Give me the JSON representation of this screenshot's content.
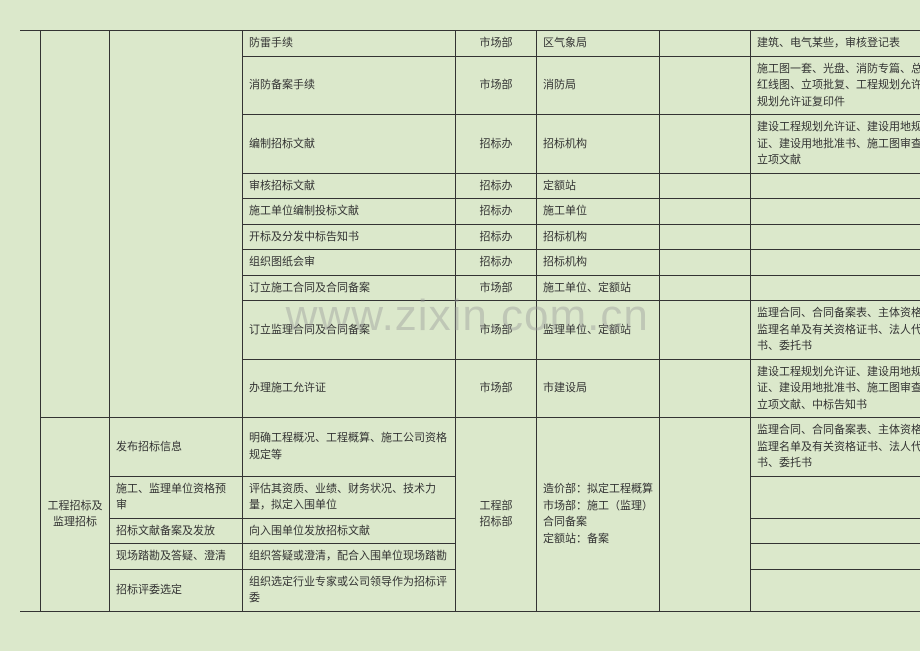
{
  "watermark": "www.zixin.com.cn",
  "rows": [
    {
      "c": "防雷手续",
      "d": "市场部",
      "e": "区气象局",
      "f": "",
      "g": "建筑、电气某些，审核登记表"
    },
    {
      "c": "消防备案手续",
      "d": "市场部",
      "e": "消防局",
      "f": "",
      "g": "施工图一套、光盘、消防专篇、总平面图、红线图、立项批复、工程规划允许证、用地规划允许证复印件"
    },
    {
      "c": "编制招标文献",
      "d": "招标办",
      "e": "招标机构",
      "f": "",
      "g": "建设工程规划允许证、建设用地规划允许证、建设用地批准书、施工图审查合格书、立项文献"
    },
    {
      "c": "审核招标文献",
      "d": "招标办",
      "e": "定额站",
      "f": "",
      "g": ""
    },
    {
      "c": "施工单位编制投标文献",
      "d": "招标办",
      "e": "施工单位",
      "f": "",
      "g": ""
    },
    {
      "c": "开标及分发中标告知书",
      "d": "招标办",
      "e": "招标机构",
      "f": "",
      "g": ""
    },
    {
      "c": "组织图纸会审",
      "d": "招标办",
      "e": "招标机构",
      "f": "",
      "g": ""
    },
    {
      "c": "订立施工合同及合同备案",
      "d": "市场部",
      "e": "施工单位、定额站",
      "f": "",
      "g": ""
    },
    {
      "c": "订立监理合同及合同备案",
      "d": "市场部",
      "e": "监理单位、定额站",
      "f": "",
      "g": "监理合同、合同备案表、主体资格确认书、监理名单及有关资格证书、法人代表资格证书、委托书"
    },
    {
      "c": "办理施工允许证",
      "d": "市场部",
      "e": "市建设局",
      "f": "",
      "g": "建设工程规划允许证、建设用地规划允许证、建设用地批准书、施工图审查合格书、立项文献、中标告知书"
    }
  ],
  "section2": {
    "a": "工程招标及监理招标",
    "d": "工程部\n招标部",
    "e": "造价部：拟定工程概算\n市场部：施工（监理）合同备案\n定额站：备案",
    "rows": [
      {
        "b": "发布招标信息",
        "c": "明确工程概况、工程概算、施工公司资格规定等",
        "g": "监理合同、合同备案表、主体资格确认书、监理名单及有关资格证书、法人代表资格证书、委托书"
      },
      {
        "b": "施工、监理单位资格预审",
        "c": "评估其资质、业绩、财务状况、技术力量，拟定入围单位",
        "g": ""
      },
      {
        "b": "招标文献备案及发放",
        "c": "向入围单位发放招标文献",
        "g": ""
      },
      {
        "b": "现场踏勘及答疑、澄清",
        "c": "组织答疑或澄清，配合入围单位现场踏勘",
        "g": ""
      },
      {
        "b": "招标评委选定",
        "c": "组织选定行业专家或公司领导作为招标评委",
        "g": ""
      }
    ]
  }
}
